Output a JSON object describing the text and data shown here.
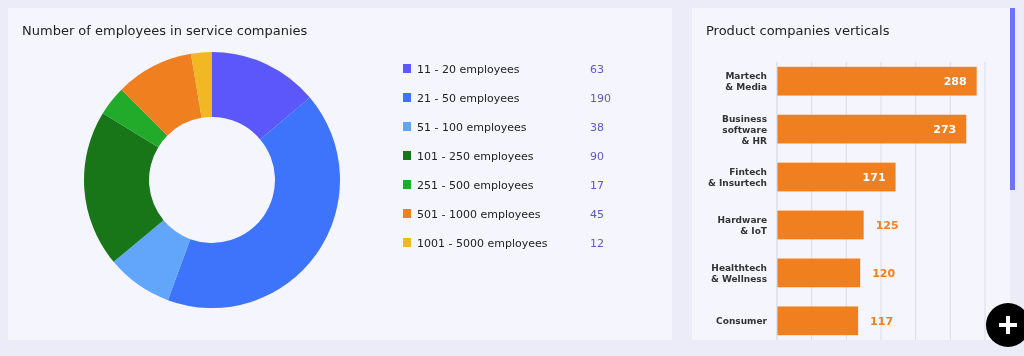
{
  "chart_data": [
    {
      "type": "donut",
      "title": "Number of employees in service companies",
      "categories": [
        "11 - 20 employees",
        "21 - 50 employees",
        "51 - 100 employees",
        "101 - 250 employees",
        "251 - 500 employees",
        "501 - 1000 employees",
        "1001 - 5000 employees"
      ],
      "values": [
        63,
        190,
        38,
        90,
        17,
        45,
        12
      ],
      "colors": [
        "#5b57fb",
        "#3d74fb",
        "#62a6fb",
        "#187518",
        "#22aa2a",
        "#f07f1f",
        "#f2b824"
      ],
      "legend": "right",
      "data_labels": true
    },
    {
      "type": "bar",
      "orientation": "horizontal",
      "title": "Product companies verticals",
      "categories": [
        "Martech\n& Media",
        "Business\nsoftware\n& HR",
        "Fintech\n& Insurtech",
        "Hardware\n& IoT",
        "Healthtech\n& Wellness",
        "Consumer"
      ],
      "values": [
        288,
        273,
        171,
        125,
        120,
        117
      ],
      "color": "#f07f1f",
      "xlim": [
        0,
        300
      ],
      "xticks": [
        {
          "value": 0,
          "label": null
        },
        {
          "value": 50,
          "label": null
        },
        {
          "value": 100,
          "label": null
        },
        {
          "value": 150,
          "label": null
        },
        {
          "value": 200,
          "label": null
        },
        {
          "value": 250,
          "label": null
        },
        {
          "value": 300,
          "label": null
        }
      ],
      "grid": "x",
      "tick_labels": "y",
      "data_labels": true
    }
  ]
}
